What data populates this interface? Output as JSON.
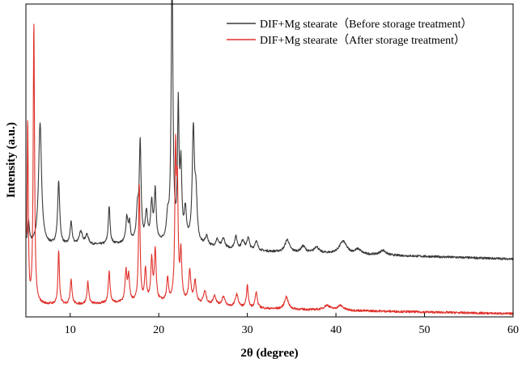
{
  "chart_data": {
    "type": "line",
    "xlabel": "2θ (degree)",
    "ylabel": "Intensity (a.u.)",
    "xlim": [
      5,
      60
    ],
    "ylim": [
      0,
      100
    ],
    "x_ticks": [
      10,
      20,
      30,
      40,
      50,
      60
    ],
    "x_tick_labels": [
      "10",
      "20",
      "30",
      "40",
      "50",
      "60"
    ],
    "y_ticks_shown": false,
    "grid": false,
    "legend_position": "top-right",
    "series": [
      {
        "name": "DIF+Mg stearate（Before storage treatment）",
        "color": "#3a3a3a",
        "baseline": 23,
        "end_baseline": 18.5,
        "peaks": [
          [
            5.3,
            7,
            0.12
          ],
          [
            6.6,
            39,
            0.2
          ],
          [
            8.7,
            20,
            0.14
          ],
          [
            10.1,
            7,
            0.14
          ],
          [
            11.2,
            4,
            0.25
          ],
          [
            11.9,
            3,
            0.2
          ],
          [
            14.4,
            12,
            0.12
          ],
          [
            16.4,
            8,
            0.14
          ],
          [
            16.7,
            6,
            0.12
          ],
          [
            17.6,
            10,
            0.15
          ],
          [
            17.9,
            31,
            0.12
          ],
          [
            18.6,
            9,
            0.15
          ],
          [
            19.2,
            12,
            0.15
          ],
          [
            19.6,
            16,
            0.12
          ],
          [
            21.0,
            7,
            0.15
          ],
          [
            21.5,
            87,
            0.12
          ],
          [
            22.2,
            42,
            0.1
          ],
          [
            22.5,
            23,
            0.12
          ],
          [
            23.0,
            10,
            0.15
          ],
          [
            23.9,
            36,
            0.15
          ],
          [
            24.2,
            14,
            0.15
          ],
          [
            25.4,
            3,
            0.2
          ],
          [
            26.6,
            2.5,
            0.2
          ],
          [
            27.3,
            3,
            0.2
          ],
          [
            28.7,
            4,
            0.18
          ],
          [
            29.5,
            3,
            0.2
          ],
          [
            30.1,
            4,
            0.15
          ],
          [
            31.0,
            3,
            0.2
          ],
          [
            34.5,
            4,
            0.3
          ],
          [
            36.3,
            2,
            0.3
          ],
          [
            37.8,
            2,
            0.3
          ],
          [
            40.8,
            4,
            0.5
          ],
          [
            42.5,
            1.5,
            0.4
          ],
          [
            45.3,
            1.5,
            0.4
          ]
        ]
      },
      {
        "name": "DIF+Mg stearate（After storage treatment）",
        "color": "#e0312b",
        "baseline": 4,
        "end_baseline": 1,
        "peaks": [
          [
            5.2,
            60,
            0.08
          ],
          [
            5.9,
            90,
            0.09
          ],
          [
            8.7,
            17,
            0.1
          ],
          [
            10.1,
            8,
            0.12
          ],
          [
            12.0,
            7,
            0.12
          ],
          [
            14.4,
            10,
            0.12
          ],
          [
            16.3,
            10,
            0.12
          ],
          [
            16.6,
            8,
            0.12
          ],
          [
            17.8,
            37,
            0.1
          ],
          [
            18.5,
            10,
            0.12
          ],
          [
            19.2,
            13,
            0.12
          ],
          [
            19.6,
            16,
            0.12
          ],
          [
            21.0,
            7,
            0.12
          ],
          [
            21.9,
            46,
            0.1
          ],
          [
            22.1,
            33,
            0.1
          ],
          [
            22.5,
            15,
            0.12
          ],
          [
            23.5,
            10,
            0.15
          ],
          [
            24.1,
            7,
            0.15
          ],
          [
            25.2,
            4,
            0.2
          ],
          [
            26.3,
            3,
            0.2
          ],
          [
            27.3,
            3,
            0.2
          ],
          [
            28.8,
            4,
            0.2
          ],
          [
            30.0,
            7,
            0.12
          ],
          [
            31.0,
            5,
            0.15
          ],
          [
            34.4,
            4,
            0.25
          ],
          [
            39.0,
            1.5,
            0.4
          ],
          [
            40.5,
            1.5,
            0.4
          ]
        ]
      }
    ]
  }
}
